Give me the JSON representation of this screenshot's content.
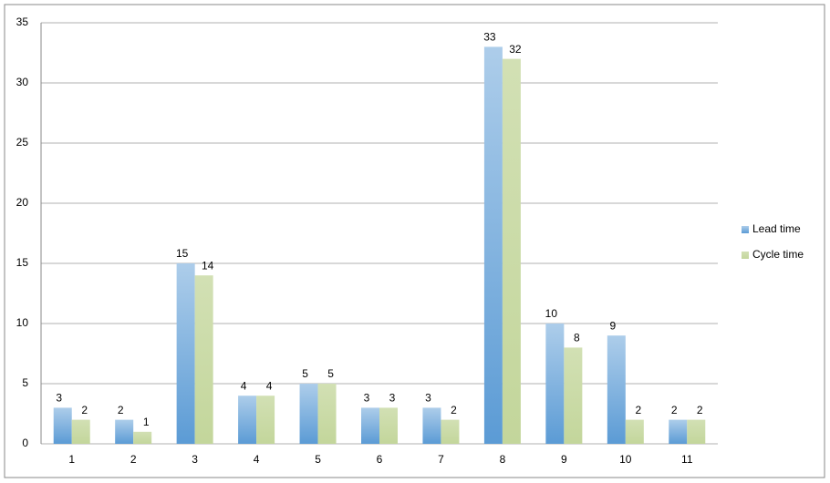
{
  "chart_data": {
    "type": "bar",
    "categories": [
      "1",
      "2",
      "3",
      "4",
      "5",
      "6",
      "7",
      "8",
      "9",
      "10",
      "11"
    ],
    "series": [
      {
        "name": "Lead time",
        "color": "#5b9bd5",
        "values": [
          3,
          2,
          15,
          4,
          5,
          3,
          3,
          33,
          10,
          9,
          2
        ]
      },
      {
        "name": "Cycle time",
        "color": "#c3d69b",
        "values": [
          2,
          1,
          14,
          4,
          5,
          3,
          2,
          32,
          8,
          2,
          2
        ]
      }
    ],
    "ylim": [
      0,
      35
    ],
    "yticks": [
      0,
      5,
      10,
      15,
      20,
      25,
      30,
      35
    ],
    "grid": true,
    "legend": "right"
  }
}
